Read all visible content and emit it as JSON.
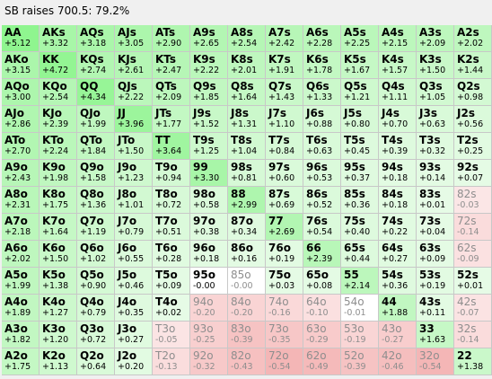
{
  "header": {
    "title": "SB raises 700.5: 79.2%"
  },
  "colors": {
    "fold_text": "#8e8e8e",
    "raise_text": "#000000",
    "grid_line": "#c8c8c8"
  },
  "rows": [
    [
      {
        "hand": "AA",
        "ev": "+5.12",
        "bg": "#8ff58f",
        "fold": false
      },
      {
        "hand": "AKs",
        "ev": "+3.32",
        "bg": "#a8f6a8",
        "fold": false
      },
      {
        "hand": "AQs",
        "ev": "+3.18",
        "bg": "#aaf6aa",
        "fold": false
      },
      {
        "hand": "AJs",
        "ev": "+3.05",
        "bg": "#acf6ac",
        "fold": false
      },
      {
        "hand": "ATs",
        "ev": "+2.90",
        "bg": "#aff6af",
        "fold": false
      },
      {
        "hand": "A9s",
        "ev": "+2.65",
        "bg": "#b3f6b3",
        "fold": false
      },
      {
        "hand": "A8s",
        "ev": "+2.54",
        "bg": "#b5f6b5",
        "fold": false
      },
      {
        "hand": "A7s",
        "ev": "+2.42",
        "bg": "#b7f6b7",
        "fold": false
      },
      {
        "hand": "A6s",
        "ev": "+2.28",
        "bg": "#baf7ba",
        "fold": false
      },
      {
        "hand": "A5s",
        "ev": "+2.25",
        "bg": "#baf7ba",
        "fold": false
      },
      {
        "hand": "A4s",
        "ev": "+2.15",
        "bg": "#bcf7bc",
        "fold": false
      },
      {
        "hand": "A3s",
        "ev": "+2.09",
        "bg": "#bdf7bd",
        "fold": false
      },
      {
        "hand": "A2s",
        "ev": "+2.02",
        "bg": "#bef7be",
        "fold": false
      }
    ],
    [
      {
        "hand": "AKo",
        "ev": "+3.15",
        "bg": "#abf6ab",
        "fold": false
      },
      {
        "hand": "KK",
        "ev": "+4.72",
        "bg": "#93f593",
        "fold": false
      },
      {
        "hand": "KQs",
        "ev": "+2.74",
        "bg": "#b2f6b2",
        "fold": false
      },
      {
        "hand": "KJs",
        "ev": "+2.61",
        "bg": "#b4f6b4",
        "fold": false
      },
      {
        "hand": "KTs",
        "ev": "+2.47",
        "bg": "#b6f6b6",
        "fold": false
      },
      {
        "hand": "K9s",
        "ev": "+2.22",
        "bg": "#bbf7bb",
        "fold": false
      },
      {
        "hand": "K8s",
        "ev": "+2.01",
        "bg": "#bef7be",
        "fold": false
      },
      {
        "hand": "K7s",
        "ev": "+1.91",
        "bg": "#c0f7c0",
        "fold": false
      },
      {
        "hand": "K6s",
        "ev": "+1.78",
        "bg": "#c3f8c3",
        "fold": false
      },
      {
        "hand": "K5s",
        "ev": "+1.67",
        "bg": "#c5f8c5",
        "fold": false
      },
      {
        "hand": "K4s",
        "ev": "+1.57",
        "bg": "#c7f8c7",
        "fold": false
      },
      {
        "hand": "K3s",
        "ev": "+1.50",
        "bg": "#c8f8c8",
        "fold": false
      },
      {
        "hand": "K2s",
        "ev": "+1.44",
        "bg": "#c9f8c9",
        "fold": false
      }
    ],
    [
      {
        "hand": "AQo",
        "ev": "+3.00",
        "bg": "#adf6ad",
        "fold": false
      },
      {
        "hand": "KQo",
        "ev": "+2.54",
        "bg": "#b5f6b5",
        "fold": false
      },
      {
        "hand": "QQ",
        "ev": "+4.34",
        "bg": "#97f597",
        "fold": false
      },
      {
        "hand": "QJs",
        "ev": "+2.22",
        "bg": "#bbf7bb",
        "fold": false
      },
      {
        "hand": "QTs",
        "ev": "+2.09",
        "bg": "#bdf7bd",
        "fold": false
      },
      {
        "hand": "Q9s",
        "ev": "+1.85",
        "bg": "#c1f7c1",
        "fold": false
      },
      {
        "hand": "Q8s",
        "ev": "+1.64",
        "bg": "#c5f8c5",
        "fold": false
      },
      {
        "hand": "Q7s",
        "ev": "+1.43",
        "bg": "#c9f8c9",
        "fold": false
      },
      {
        "hand": "Q6s",
        "ev": "+1.33",
        "bg": "#cbf8cb",
        "fold": false
      },
      {
        "hand": "Q5s",
        "ev": "+1.21",
        "bg": "#cef9ce",
        "fold": false
      },
      {
        "hand": "Q4s",
        "ev": "+1.11",
        "bg": "#d0f9d0",
        "fold": false
      },
      {
        "hand": "Q3s",
        "ev": "+1.05",
        "bg": "#d1f9d1",
        "fold": false
      },
      {
        "hand": "Q2s",
        "ev": "+0.98",
        "bg": "#d3f9d3",
        "fold": false
      }
    ],
    [
      {
        "hand": "AJo",
        "ev": "+2.86",
        "bg": "#b0f6b0",
        "fold": false
      },
      {
        "hand": "KJo",
        "ev": "+2.39",
        "bg": "#b8f7b8",
        "fold": false
      },
      {
        "hand": "QJo",
        "ev": "+1.99",
        "bg": "#bff7bf",
        "fold": false
      },
      {
        "hand": "JJ",
        "ev": "+3.96",
        "bg": "#9cf59c",
        "fold": false
      },
      {
        "hand": "JTs",
        "ev": "+1.77",
        "bg": "#c3f8c3",
        "fold": false
      },
      {
        "hand": "J9s",
        "ev": "+1.52",
        "bg": "#c8f8c8",
        "fold": false
      },
      {
        "hand": "J8s",
        "ev": "+1.31",
        "bg": "#cbf8cb",
        "fold": false
      },
      {
        "hand": "J7s",
        "ev": "+1.10",
        "bg": "#d0f9d0",
        "fold": false
      },
      {
        "hand": "J6s",
        "ev": "+0.88",
        "bg": "#d5f9d5",
        "fold": false
      },
      {
        "hand": "J5s",
        "ev": "+0.80",
        "bg": "#d6f9d6",
        "fold": false
      },
      {
        "hand": "J4s",
        "ev": "+0.70",
        "bg": "#d8fad8",
        "fold": false
      },
      {
        "hand": "J3s",
        "ev": "+0.63",
        "bg": "#d9fad9",
        "fold": false
      },
      {
        "hand": "J2s",
        "ev": "+0.56",
        "bg": "#dbfadb",
        "fold": false
      }
    ],
    [
      {
        "hand": "ATo",
        "ev": "+2.70",
        "bg": "#b2f6b2",
        "fold": false
      },
      {
        "hand": "KTo",
        "ev": "+2.24",
        "bg": "#baf7ba",
        "fold": false
      },
      {
        "hand": "QTo",
        "ev": "+1.84",
        "bg": "#c1f7c1",
        "fold": false
      },
      {
        "hand": "JTo",
        "ev": "+1.50",
        "bg": "#c8f8c8",
        "fold": false
      },
      {
        "hand": "TT",
        "ev": "+3.64",
        "bg": "#a0f5a0",
        "fold": false
      },
      {
        "hand": "T9s",
        "ev": "+1.25",
        "bg": "#cdf9cd",
        "fold": false
      },
      {
        "hand": "T8s",
        "ev": "+1.04",
        "bg": "#d1f9d1",
        "fold": false
      },
      {
        "hand": "T7s",
        "ev": "+0.84",
        "bg": "#d5f9d5",
        "fold": false
      },
      {
        "hand": "T6s",
        "ev": "+0.63",
        "bg": "#d9fad9",
        "fold": false
      },
      {
        "hand": "T5s",
        "ev": "+0.45",
        "bg": "#ddfadd",
        "fold": false
      },
      {
        "hand": "T4s",
        "ev": "+0.39",
        "bg": "#defade",
        "fold": false
      },
      {
        "hand": "T3s",
        "ev": "+0.32",
        "bg": "#dffadf",
        "fold": false
      },
      {
        "hand": "T2s",
        "ev": "+0.25",
        "bg": "#e1fbe1",
        "fold": false
      }
    ],
    [
      {
        "hand": "A9o",
        "ev": "+2.43",
        "bg": "#b7f6b7",
        "fold": false
      },
      {
        "hand": "K9o",
        "ev": "+1.98",
        "bg": "#bff7bf",
        "fold": false
      },
      {
        "hand": "Q9o",
        "ev": "+1.58",
        "bg": "#c7f8c7",
        "fold": false
      },
      {
        "hand": "J9o",
        "ev": "+1.23",
        "bg": "#cef9ce",
        "fold": false
      },
      {
        "hand": "T9o",
        "ev": "+0.94",
        "bg": "#d3f9d3",
        "fold": false
      },
      {
        "hand": "99",
        "ev": "+3.30",
        "bg": "#a8f6a8",
        "fold": false
      },
      {
        "hand": "98s",
        "ev": "+0.81",
        "bg": "#d6f9d6",
        "fold": false
      },
      {
        "hand": "97s",
        "ev": "+0.60",
        "bg": "#dafada",
        "fold": false
      },
      {
        "hand": "96s",
        "ev": "+0.53",
        "bg": "#dbfadb",
        "fold": false
      },
      {
        "hand": "95s",
        "ev": "+0.37",
        "bg": "#dffadf",
        "fold": false
      },
      {
        "hand": "94s",
        "ev": "+0.18",
        "bg": "#e2fbe2",
        "fold": false
      },
      {
        "hand": "93s",
        "ev": "+0.14",
        "bg": "#e3fbe3",
        "fold": false
      },
      {
        "hand": "92s",
        "ev": "+0.07",
        "bg": "#e5fbe5",
        "fold": false
      }
    ],
    [
      {
        "hand": "A8o",
        "ev": "+2.31",
        "bg": "#b9f7b9",
        "fold": false
      },
      {
        "hand": "K8o",
        "ev": "+1.75",
        "bg": "#c4f8c4",
        "fold": false
      },
      {
        "hand": "Q8o",
        "ev": "+1.36",
        "bg": "#cbf8cb",
        "fold": false
      },
      {
        "hand": "J8o",
        "ev": "+1.01",
        "bg": "#d2f9d2",
        "fold": false
      },
      {
        "hand": "T8o",
        "ev": "+0.72",
        "bg": "#d7f9d7",
        "fold": false
      },
      {
        "hand": "98o",
        "ev": "+0.58",
        "bg": "#dafada",
        "fold": false
      },
      {
        "hand": "88",
        "ev": "+2.99",
        "bg": "#aef6ae",
        "fold": false
      },
      {
        "hand": "87s",
        "ev": "+0.69",
        "bg": "#d8fad8",
        "fold": false
      },
      {
        "hand": "86s",
        "ev": "+0.52",
        "bg": "#dbfadb",
        "fold": false
      },
      {
        "hand": "85s",
        "ev": "+0.36",
        "bg": "#dffadf",
        "fold": false
      },
      {
        "hand": "84s",
        "ev": "+0.18",
        "bg": "#e2fbe2",
        "fold": false
      },
      {
        "hand": "83s",
        "ev": "+0.01",
        "bg": "#e6fbe6",
        "fold": false
      },
      {
        "hand": "82s",
        "ev": "-0.03",
        "bg": "#fbe6e6",
        "fold": true
      }
    ],
    [
      {
        "hand": "A7o",
        "ev": "+2.18",
        "bg": "#bbf7bb",
        "fold": false
      },
      {
        "hand": "K7o",
        "ev": "+1.64",
        "bg": "#c5f8c5",
        "fold": false
      },
      {
        "hand": "Q7o",
        "ev": "+1.19",
        "bg": "#cef9ce",
        "fold": false
      },
      {
        "hand": "J7o",
        "ev": "+0.79",
        "bg": "#d6f9d6",
        "fold": false
      },
      {
        "hand": "T7o",
        "ev": "+0.51",
        "bg": "#dbfadb",
        "fold": false
      },
      {
        "hand": "97o",
        "ev": "+0.38",
        "bg": "#defade",
        "fold": false
      },
      {
        "hand": "87o",
        "ev": "+0.34",
        "bg": "#dffadf",
        "fold": false
      },
      {
        "hand": "77",
        "ev": "+2.69",
        "bg": "#b2f6b2",
        "fold": false
      },
      {
        "hand": "76s",
        "ev": "+0.54",
        "bg": "#dbfadb",
        "fold": false
      },
      {
        "hand": "75s",
        "ev": "+0.40",
        "bg": "#defade",
        "fold": false
      },
      {
        "hand": "74s",
        "ev": "+0.22",
        "bg": "#e1fbe1",
        "fold": false
      },
      {
        "hand": "73s",
        "ev": "+0.04",
        "bg": "#e5fbe5",
        "fold": false
      },
      {
        "hand": "72s",
        "ev": "-0.14",
        "bg": "#fadcdc",
        "fold": true
      }
    ],
    [
      {
        "hand": "A6o",
        "ev": "+2.02",
        "bg": "#bef7be",
        "fold": false
      },
      {
        "hand": "K6o",
        "ev": "+1.50",
        "bg": "#c8f8c8",
        "fold": false
      },
      {
        "hand": "Q6o",
        "ev": "+1.02",
        "bg": "#d2f9d2",
        "fold": false
      },
      {
        "hand": "J6o",
        "ev": "+0.55",
        "bg": "#dbfadb",
        "fold": false
      },
      {
        "hand": "T6o",
        "ev": "+0.28",
        "bg": "#e0fbe0",
        "fold": false
      },
      {
        "hand": "96o",
        "ev": "+0.18",
        "bg": "#e2fbe2",
        "fold": false
      },
      {
        "hand": "86o",
        "ev": "+0.16",
        "bg": "#e3fbe3",
        "fold": false
      },
      {
        "hand": "76o",
        "ev": "+0.19",
        "bg": "#e2fbe2",
        "fold": false
      },
      {
        "hand": "66",
        "ev": "+2.39",
        "bg": "#b8f7b8",
        "fold": false
      },
      {
        "hand": "65s",
        "ev": "+0.44",
        "bg": "#ddfadd",
        "fold": false
      },
      {
        "hand": "64s",
        "ev": "+0.27",
        "bg": "#e0fbe0",
        "fold": false
      },
      {
        "hand": "63s",
        "ev": "+0.09",
        "bg": "#e4fbe4",
        "fold": false
      },
      {
        "hand": "62s",
        "ev": "-0.09",
        "bg": "#fbe1e1",
        "fold": true
      }
    ],
    [
      {
        "hand": "A5o",
        "ev": "+1.99",
        "bg": "#bff7bf",
        "fold": false
      },
      {
        "hand": "K5o",
        "ev": "+1.38",
        "bg": "#caf8ca",
        "fold": false
      },
      {
        "hand": "Q5o",
        "ev": "+0.90",
        "bg": "#d4f9d4",
        "fold": false
      },
      {
        "hand": "J5o",
        "ev": "+0.46",
        "bg": "#ddfadd",
        "fold": false
      },
      {
        "hand": "T5o",
        "ev": "+0.09",
        "bg": "#e4fbe4",
        "fold": false
      },
      {
        "hand": "95o",
        "ev": "-0.00",
        "bg": "#ffffff",
        "fold": false
      },
      {
        "hand": "85o",
        "ev": "-0.00",
        "bg": "#ffffff",
        "fold": true
      },
      {
        "hand": "75o",
        "ev": "+0.03",
        "bg": "#e5fbe5",
        "fold": false
      },
      {
        "hand": "65o",
        "ev": "+0.08",
        "bg": "#e4fbe4",
        "fold": false
      },
      {
        "hand": "55",
        "ev": "+2.14",
        "bg": "#bcf7bc",
        "fold": false
      },
      {
        "hand": "54s",
        "ev": "+0.36",
        "bg": "#dffadf",
        "fold": false
      },
      {
        "hand": "53s",
        "ev": "+0.19",
        "bg": "#e2fbe2",
        "fold": false
      },
      {
        "hand": "52s",
        "ev": "+0.01",
        "bg": "#e6fbe6",
        "fold": false
      }
    ],
    [
      {
        "hand": "A4o",
        "ev": "+1.89",
        "bg": "#c1f7c1",
        "fold": false
      },
      {
        "hand": "K4o",
        "ev": "+1.27",
        "bg": "#ccf8cc",
        "fold": false
      },
      {
        "hand": "Q4o",
        "ev": "+0.79",
        "bg": "#d6f9d6",
        "fold": false
      },
      {
        "hand": "J4o",
        "ev": "+0.35",
        "bg": "#dffadf",
        "fold": false
      },
      {
        "hand": "T4o",
        "ev": "+0.02",
        "bg": "#e6fbe6",
        "fold": false
      },
      {
        "hand": "94o",
        "ev": "-0.20",
        "bg": "#f9d4d4",
        "fold": true
      },
      {
        "hand": "84o",
        "ev": "-0.20",
        "bg": "#f9d4d4",
        "fold": true
      },
      {
        "hand": "74o",
        "ev": "-0.16",
        "bg": "#fad9d9",
        "fold": true
      },
      {
        "hand": "64o",
        "ev": "-0.10",
        "bg": "#fbe0e0",
        "fold": true
      },
      {
        "hand": "54o",
        "ev": "-0.01",
        "bg": "#ffffff",
        "fold": true
      },
      {
        "hand": "44",
        "ev": "+1.88",
        "bg": "#c1f7c1",
        "fold": false
      },
      {
        "hand": "43s",
        "ev": "+0.11",
        "bg": "#e3fbe3",
        "fold": false
      },
      {
        "hand": "42s",
        "ev": "-0.07",
        "bg": "#fbe3e3",
        "fold": true
      }
    ],
    [
      {
        "hand": "A3o",
        "ev": "+1.82",
        "bg": "#c2f7c2",
        "fold": false
      },
      {
        "hand": "K3o",
        "ev": "+1.20",
        "bg": "#cef9ce",
        "fold": false
      },
      {
        "hand": "Q3o",
        "ev": "+0.72",
        "bg": "#d7f9d7",
        "fold": false
      },
      {
        "hand": "J3o",
        "ev": "+0.27",
        "bg": "#e0fbe0",
        "fold": false
      },
      {
        "hand": "T3o",
        "ev": "-0.05",
        "bg": "#fbe4e4",
        "fold": true
      },
      {
        "hand": "93o",
        "ev": "-0.25",
        "bg": "#f8cfcf",
        "fold": true
      },
      {
        "hand": "83o",
        "ev": "-0.39",
        "bg": "#f6c3c3",
        "fold": true
      },
      {
        "hand": "73o",
        "ev": "-0.35",
        "bg": "#f7c7c7",
        "fold": true
      },
      {
        "hand": "63o",
        "ev": "-0.29",
        "bg": "#f8cbcb",
        "fold": true
      },
      {
        "hand": "53o",
        "ev": "-0.19",
        "bg": "#f9d5d5",
        "fold": true
      },
      {
        "hand": "43o",
        "ev": "-0.27",
        "bg": "#f8cdcd",
        "fold": true
      },
      {
        "hand": "33",
        "ev": "+1.63",
        "bg": "#c6f8c6",
        "fold": false
      },
      {
        "hand": "32s",
        "ev": "-0.14",
        "bg": "#fadcdc",
        "fold": true
      }
    ],
    [
      {
        "hand": "A2o",
        "ev": "+1.75",
        "bg": "#c4f8c4",
        "fold": false
      },
      {
        "hand": "K2o",
        "ev": "+1.13",
        "bg": "#cff9cf",
        "fold": false
      },
      {
        "hand": "Q2o",
        "ev": "+0.64",
        "bg": "#d9fad9",
        "fold": false
      },
      {
        "hand": "J2o",
        "ev": "+0.20",
        "bg": "#e2fbe2",
        "fold": false
      },
      {
        "hand": "T2o",
        "ev": "-0.13",
        "bg": "#faddd d",
        "fold": true
      },
      {
        "hand": "92o",
        "ev": "-0.32",
        "bg": "#f7c9c9",
        "fold": true
      },
      {
        "hand": "82o",
        "ev": "-0.43",
        "bg": "#f6c0c0",
        "fold": true
      },
      {
        "hand": "72o",
        "ev": "-0.54",
        "bg": "#f4b6b6",
        "fold": true
      },
      {
        "hand": "62o",
        "ev": "-0.49",
        "bg": "#f5baba",
        "fold": true
      },
      {
        "hand": "52o",
        "ev": "-0.39",
        "bg": "#f6c3c3",
        "fold": true
      },
      {
        "hand": "42o",
        "ev": "-0.46",
        "bg": "#f5bebe",
        "fold": true
      },
      {
        "hand": "32o",
        "ev": "-0.54",
        "bg": "#f4b6b6",
        "fold": true
      },
      {
        "hand": "22",
        "ev": "+1.38",
        "bg": "#caf8ca",
        "fold": false
      }
    ]
  ]
}
